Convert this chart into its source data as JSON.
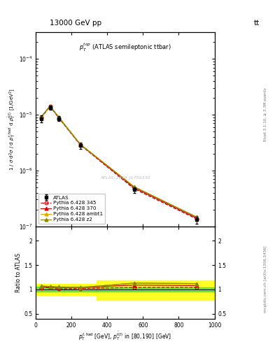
{
  "title_left": "13000 GeV pp",
  "title_right": "tt",
  "panel_title": "$p_T^{top}$ (ATLAS semileptonic ttbar)",
  "watermark": "ATLAS_2019_I1750330",
  "x_data": [
    30,
    80,
    130,
    250,
    550,
    900
  ],
  "atlas_y": [
    8.5e-06,
    1.35e-05,
    8.5e-06,
    2.8e-06,
    4.5e-07,
    1.3e-07
  ],
  "atlas_yerr": [
    1.2e-06,
    1.2e-06,
    9e-07,
    3.5e-07,
    5e-08,
    1.8e-08
  ],
  "pythia345_y": [
    8.8e-06,
    1.4e-05,
    8.6e-06,
    2.85e-06,
    4.7e-07,
    1.35e-07
  ],
  "pythia370_y": [
    9e-06,
    1.42e-05,
    8.8e-06,
    2.9e-06,
    4.9e-07,
    1.4e-07
  ],
  "pythia_ambt1_y": [
    9.1e-06,
    1.43e-05,
    8.9e-06,
    2.92e-06,
    5.1e-07,
    1.46e-07
  ],
  "pythia_z2_y": [
    9.1e-06,
    1.43e-05,
    8.9e-06,
    2.92e-06,
    5.1e-07,
    1.46e-07
  ],
  "ratio345": [
    1.03,
    1.04,
    1.01,
    1.02,
    1.04,
    1.04
  ],
  "ratio370": [
    1.06,
    1.05,
    1.04,
    1.04,
    1.09,
    1.08
  ],
  "ratio_ambt1": [
    1.07,
    1.06,
    1.05,
    1.04,
    1.13,
    1.12
  ],
  "ratio_z2": [
    1.07,
    1.06,
    1.05,
    1.04,
    1.13,
    1.12
  ],
  "yellow_bands": [
    {
      "x": [
        0,
        160
      ],
      "ylo": 0.88,
      "yhi": 1.12
    },
    {
      "x": [
        160,
        340
      ],
      "ylo": 0.88,
      "yhi": 1.12
    },
    {
      "x": [
        340,
        1000
      ],
      "ylo": 0.78,
      "yhi": 1.18
    }
  ],
  "green_bands": [
    {
      "x": [
        0,
        160
      ],
      "ylo": 0.95,
      "yhi": 1.05
    },
    {
      "x": [
        160,
        340
      ],
      "ylo": 0.95,
      "yhi": 1.05
    },
    {
      "x": [
        340,
        1000
      ],
      "ylo": 0.96,
      "yhi": 1.04
    }
  ],
  "color_atlas": "#000000",
  "color_345": "#cc0000",
  "color_370": "#cc0000",
  "color_ambt1": "#ddaa00",
  "color_z2": "#888800",
  "ylim_main": [
    1e-07,
    0.0003
  ],
  "ylim_ratio": [
    0.4,
    2.3
  ],
  "xlim": [
    0,
    1000
  ]
}
